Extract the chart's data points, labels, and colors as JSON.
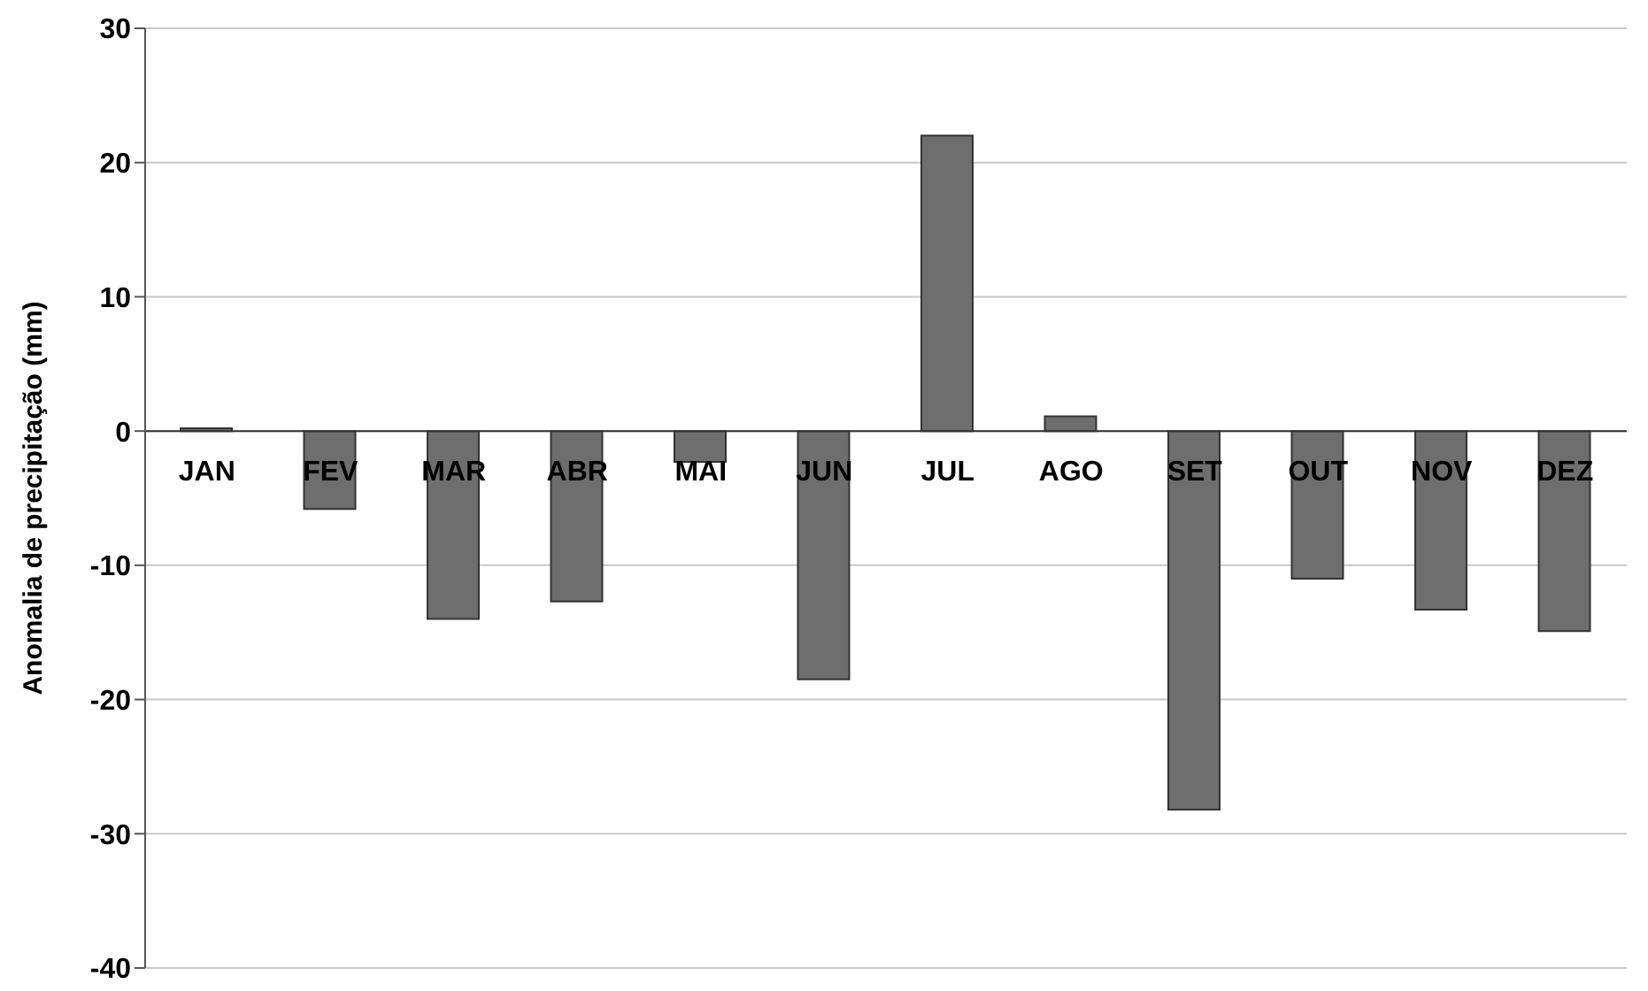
{
  "chart_data": {
    "type": "bar",
    "ylabel": "Anomalia de precipitação (mm)",
    "categories": [
      "JAN",
      "FEV",
      "MAR",
      "ABR",
      "MAI",
      "JUN",
      "JUL",
      "AGO",
      "SET",
      "OUT",
      "NOV",
      "DEZ"
    ],
    "values": [
      0.2,
      -5.8,
      -14.0,
      -12.7,
      -2.3,
      -18.5,
      22.0,
      1.1,
      -28.2,
      -11.0,
      -13.3,
      -14.9
    ],
    "color": "#6e6e6e",
    "ylim": [
      -40,
      30
    ],
    "yticks": [
      -40,
      -30,
      -20,
      -10,
      0,
      10,
      20,
      30
    ],
    "grid": "y"
  }
}
